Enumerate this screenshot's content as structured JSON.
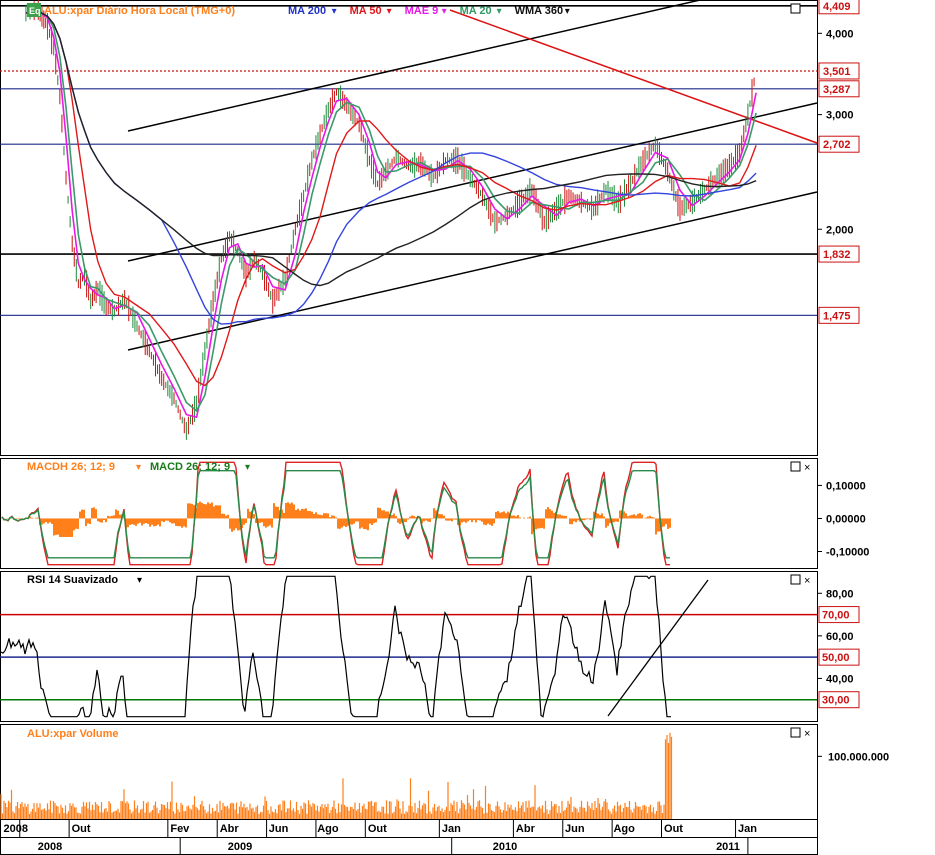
{
  "header": {
    "badge": "Eq",
    "symbol_title": "ALU:xpar Diário Hora Local (TMG+0)",
    "indicators": [
      {
        "label": "MA 200",
        "color": "#1f33cc"
      },
      {
        "label": "MA 50",
        "color": "#e0161b"
      },
      {
        "label": "MAE 9",
        "color": "#e619e6"
      },
      {
        "label": "MA 20",
        "color": "#2e9b62"
      },
      {
        "label": "WMA 360",
        "color": "#111111"
      }
    ],
    "dropdown_glyph": "▾"
  },
  "panels": {
    "price": {
      "name": "price-panel"
    },
    "macd": {
      "hist_label": "MACDH 26; 12; 9",
      "macd_label": "MACD 26; 12; 9"
    },
    "rsi": {
      "label": "RSI 14 Suavizado"
    },
    "volume": {
      "label": "ALU:xpar Volume"
    }
  },
  "colors": {
    "price_up": "#1a8a3a",
    "price_down": "#cc1111",
    "ma200": "#3344dd",
    "ma50": "#e01818",
    "mae9": "#e619e6",
    "ma20": "#3c9a6a",
    "wma360": "#222222",
    "orange": "#ff7f1a",
    "label_red": "#cc1111",
    "label_border": "#cc1111",
    "hline_blue": "#1c2a8c",
    "hline_black": "#000000",
    "rsi_red": "#cc0000",
    "rsi_green": "#007700"
  },
  "chart_data": {
    "type": "line",
    "scale": "log",
    "ylim": [
      0.9,
      4.5
    ],
    "y_ticks": [
      "4,000",
      "3,000",
      "2,000"
    ],
    "price_labels": [
      "4,409",
      "3,501",
      "3,287",
      "2,702",
      "1,832",
      "1,475"
    ],
    "levels": [
      {
        "value": 4.409,
        "label": "4,409",
        "style": "solid-black"
      },
      {
        "value": 3.501,
        "label": "3,501",
        "style": "dotted-red"
      },
      {
        "value": 3.287,
        "label": "3,287",
        "style": "solid-blue"
      },
      {
        "value": 2.702,
        "label": "2,702",
        "style": "solid-blue"
      },
      {
        "value": 1.832,
        "label": "1,832",
        "style": "solid-black"
      },
      {
        "value": 1.475,
        "label": "1,475",
        "style": "solid-blue"
      }
    ],
    "x_labels": [
      "2008",
      "Out",
      "Fev",
      "Abr",
      "Jun",
      "Ago",
      "Out",
      "Jan",
      "Abr",
      "Jun",
      "Ago",
      "Out",
      "Jan"
    ],
    "year_labels": [
      "2008",
      "2009",
      "2010",
      "2011"
    ],
    "price_path": [
      [
        "2008-08",
        4.3
      ],
      [
        "2008-08",
        4.35
      ],
      [
        "2008-09",
        4.1
      ],
      [
        "2008-09",
        3.8
      ],
      [
        "2008-09",
        3.2
      ],
      [
        "2008-09",
        2.4
      ],
      [
        "2008-10",
        1.9
      ],
      [
        "2008-10",
        1.65
      ],
      [
        "2008-10",
        1.7
      ],
      [
        "2008-10",
        1.55
      ],
      [
        "2008-11",
        1.62
      ],
      [
        "2008-11",
        1.52
      ],
      [
        "2008-11",
        1.5
      ],
      [
        "2008-12",
        1.56
      ],
      [
        "2008-12",
        1.42
      ],
      [
        "2009-01",
        1.3
      ],
      [
        "2009-01",
        1.18
      ],
      [
        "2009-02",
        1.1
      ],
      [
        "2009-02",
        0.98
      ],
      [
        "2009-03",
        1.08
      ],
      [
        "2009-03",
        1.3
      ],
      [
        "2009-03",
        1.55
      ],
      [
        "2009-04",
        1.8
      ],
      [
        "2009-04",
        1.95
      ],
      [
        "2009-04",
        1.85
      ],
      [
        "2009-05",
        1.7
      ],
      [
        "2009-05",
        1.8
      ],
      [
        "2009-05",
        1.72
      ],
      [
        "2009-06",
        1.55
      ],
      [
        "2009-06",
        1.68
      ],
      [
        "2009-07",
        2.0
      ],
      [
        "2009-07",
        2.25
      ],
      [
        "2009-07",
        2.55
      ],
      [
        "2009-08",
        2.8
      ],
      [
        "2009-08",
        3.05
      ],
      [
        "2009-08",
        3.25
      ],
      [
        "2009-09",
        3.1
      ],
      [
        "2009-09",
        2.9
      ],
      [
        "2009-10",
        2.55
      ],
      [
        "2009-10",
        2.35
      ],
      [
        "2009-10",
        2.45
      ],
      [
        "2009-11",
        2.58
      ],
      [
        "2009-11",
        2.5
      ],
      [
        "2009-12",
        2.52
      ],
      [
        "2009-12",
        2.4
      ],
      [
        "2010-01",
        2.55
      ],
      [
        "2010-01",
        2.55
      ],
      [
        "2010-02",
        2.4
      ],
      [
        "2010-02",
        2.25
      ],
      [
        "2010-03",
        2.05
      ],
      [
        "2010-03",
        2.1
      ],
      [
        "2010-04",
        2.2
      ],
      [
        "2010-04",
        2.3
      ],
      [
        "2010-05",
        2.05
      ],
      [
        "2010-05",
        2.15
      ],
      [
        "2010-06",
        2.25
      ],
      [
        "2010-06",
        2.2
      ],
      [
        "2010-07",
        2.15
      ],
      [
        "2010-07",
        2.3
      ],
      [
        "2010-08",
        2.2
      ],
      [
        "2010-08",
        2.35
      ],
      [
        "2010-09",
        2.55
      ],
      [
        "2010-09",
        2.7
      ],
      [
        "2010-10",
        2.45
      ],
      [
        "2010-10",
        2.15
      ],
      [
        "2010-11",
        2.2
      ],
      [
        "2010-11",
        2.3
      ],
      [
        "2010-12",
        2.4
      ],
      [
        "2010-12",
        2.5
      ],
      [
        "2011-01",
        2.62
      ],
      [
        "2011-01",
        3.0
      ],
      [
        "2011-01",
        3.5
      ]
    ],
    "macd": {
      "y_ticks": [
        "0,10000",
        "0,00000",
        "-0,10000"
      ],
      "ylim": [
        -0.15,
        0.18
      ]
    },
    "rsi": {
      "y_ticks": [
        "80,00",
        "60,00",
        "40,00"
      ],
      "levels": [
        70,
        50,
        30
      ],
      "level_labels": [
        "70,00",
        "50,00",
        "30,00"
      ],
      "ylim": [
        20,
        90
      ]
    },
    "volume": {
      "y_ticks": [
        "100.000.000"
      ]
    }
  }
}
